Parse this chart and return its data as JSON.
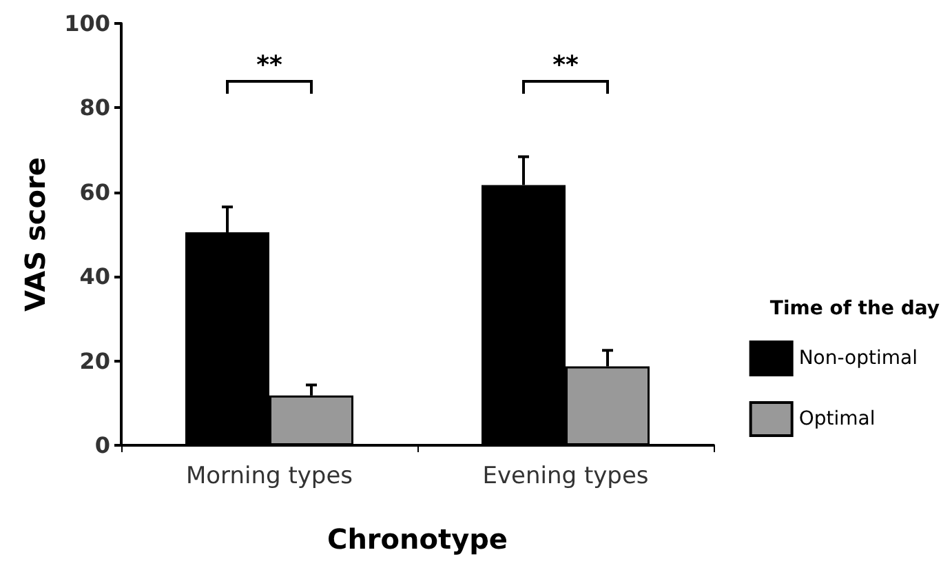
{
  "chart_data": {
    "type": "bar",
    "xlabel": "Chronotype",
    "ylabel": "VAS score",
    "legend_title": "Time of the day",
    "categories": [
      "Morning types",
      "Evening types"
    ],
    "series": [
      {
        "name": "Non-optimal",
        "color": "#000000",
        "values": [
          50.5,
          61.7
        ],
        "errors": [
          6,
          6.7
        ]
      },
      {
        "name": "Optimal",
        "color": "#999999",
        "values": [
          11.8,
          18.7
        ],
        "errors": [
          2.5,
          3.8
        ]
      }
    ],
    "ylim": [
      0,
      100
    ],
    "yticks": [
      0,
      20,
      40,
      60,
      80,
      100
    ],
    "grid": false,
    "legend": "right",
    "annotations": [
      "**",
      "**"
    ]
  }
}
